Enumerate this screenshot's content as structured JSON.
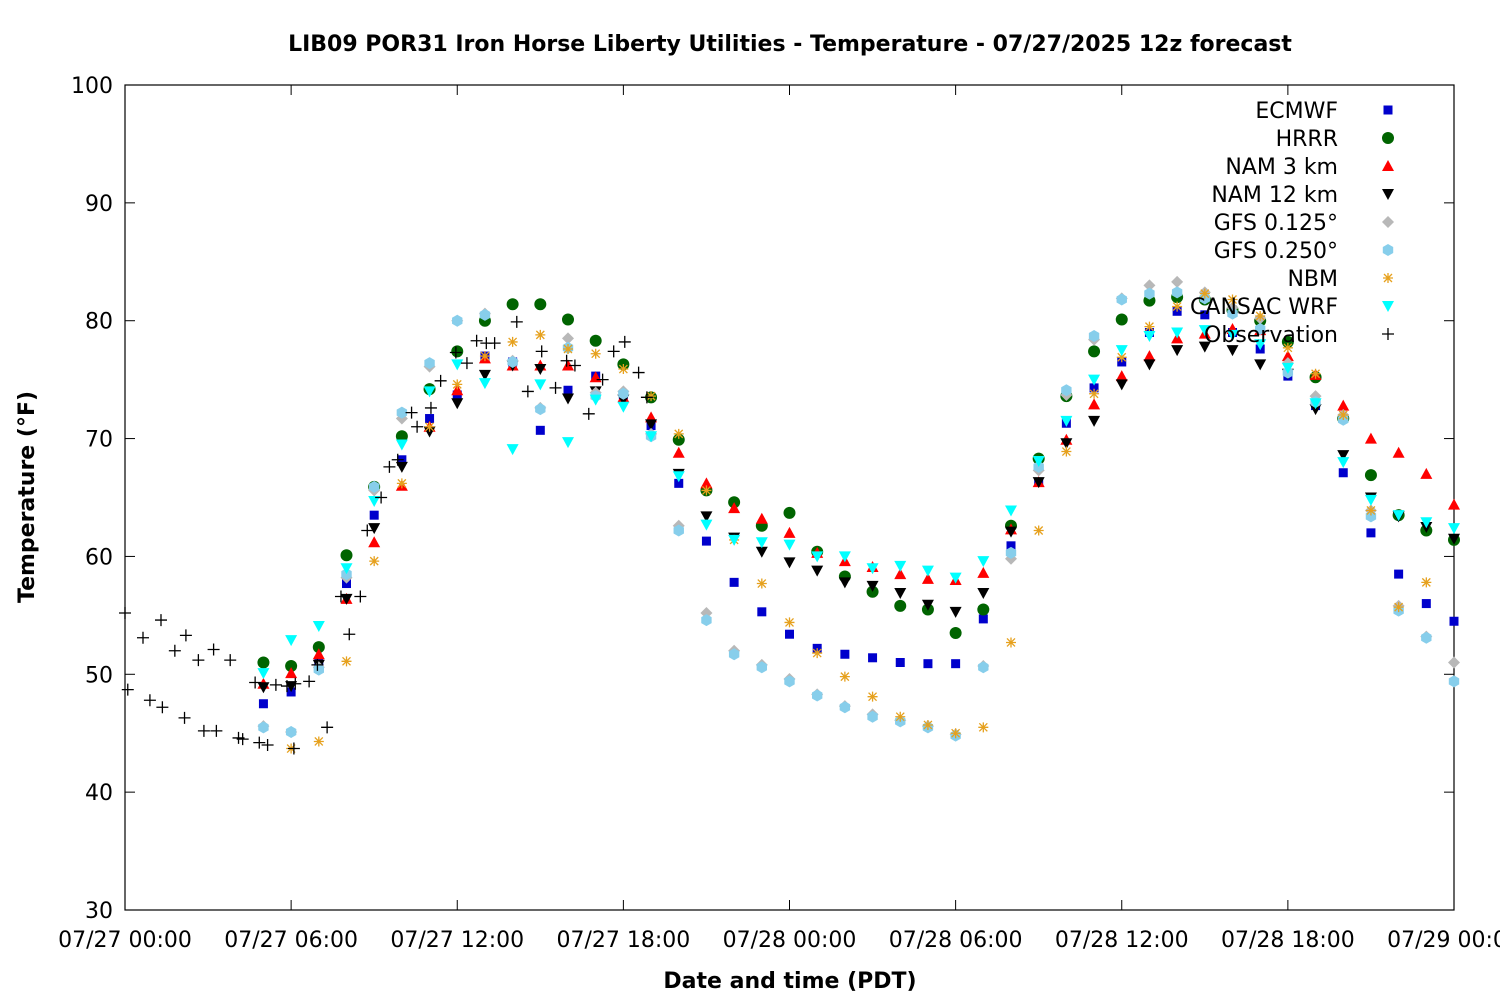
{
  "chart_data": {
    "type": "scatter",
    "title": "LIB09 POR31 Iron Horse Liberty Utilities - Temperature - 07/27/2025 12z forecast",
    "xlabel": "Date and time (PDT)",
    "ylabel": "Temperature (°F)",
    "x_unit": "hours since 07/27 00:00 PDT",
    "xlim": [
      0,
      48
    ],
    "ylim": [
      30,
      100
    ],
    "x_ticks": [
      {
        "value": 0,
        "label": "07/27 00:00"
      },
      {
        "value": 6,
        "label": "07/27 06:00"
      },
      {
        "value": 12,
        "label": "07/27 12:00"
      },
      {
        "value": 18,
        "label": "07/27 18:00"
      },
      {
        "value": 24,
        "label": "07/28 00:00"
      },
      {
        "value": 30,
        "label": "07/28 06:00"
      },
      {
        "value": 36,
        "label": "07/28 12:00"
      },
      {
        "value": 42,
        "label": "07/28 18:00"
      },
      {
        "value": 48,
        "label": "07/29 00:00"
      }
    ],
    "y_ticks": [
      30,
      40,
      50,
      60,
      70,
      80,
      90,
      100
    ],
    "grid": false,
    "legend_position": "top-right",
    "series": [
      {
        "name": "ECMWF",
        "color": "#0000cc",
        "marker": "square",
        "x": [
          5,
          6,
          7,
          8,
          9,
          10,
          11,
          12,
          13,
          14,
          15,
          16,
          17,
          18,
          19,
          20,
          21,
          22,
          23,
          24,
          25,
          26,
          27,
          28,
          29,
          30,
          31,
          32,
          33,
          34,
          35,
          36,
          37,
          38,
          39,
          40,
          41,
          42,
          43,
          44,
          45,
          46,
          47,
          48
        ],
        "y": [
          47.5,
          48.5,
          51.0,
          57.7,
          63.5,
          68.2,
          71.7,
          73.7,
          77.0,
          76.5,
          70.7,
          74.1,
          75.3,
          73.7,
          71.1,
          66.2,
          61.3,
          57.8,
          55.3,
          53.4,
          52.2,
          51.7,
          51.4,
          51.0,
          50.9,
          50.9,
          54.7,
          60.9,
          66.3,
          71.3,
          74.3,
          76.5,
          79.0,
          80.8,
          80.5,
          79.0,
          77.6,
          75.3,
          72.8,
          67.1,
          62.0,
          58.5,
          56.0,
          54.5
        ]
      },
      {
        "name": "HRRR",
        "color": "#006400",
        "marker": "circle",
        "x": [
          5,
          6,
          7,
          8,
          9,
          10,
          11,
          12,
          13,
          14,
          15,
          16,
          17,
          18,
          19,
          20,
          21,
          22,
          23,
          24,
          25,
          26,
          27,
          28,
          29,
          30,
          31,
          32,
          33,
          34,
          35,
          36,
          37,
          38,
          39,
          40,
          41,
          42,
          43,
          44,
          45,
          46,
          47,
          48
        ],
        "y": [
          51.0,
          50.7,
          52.3,
          60.1,
          65.9,
          70.2,
          74.2,
          77.4,
          80.0,
          81.4,
          81.4,
          80.1,
          78.3,
          76.3,
          73.5,
          69.9,
          65.6,
          64.6,
          62.6,
          63.7,
          60.4,
          58.3,
          57.0,
          55.8,
          55.5,
          53.5,
          55.5,
          62.6,
          68.3,
          73.6,
          77.4,
          80.1,
          81.7,
          82.0,
          81.8,
          80.9,
          80.0,
          78.2,
          75.2,
          71.7,
          66.9,
          63.5,
          62.2,
          61.4
        ]
      },
      {
        "name": "NAM 3 km",
        "color": "#ff0000",
        "marker": "triangle-up",
        "x": [
          5,
          6,
          7,
          8,
          9,
          10,
          11,
          12,
          13,
          14,
          15,
          16,
          17,
          18,
          19,
          20,
          21,
          22,
          23,
          24,
          25,
          26,
          27,
          28,
          29,
          30,
          31,
          32,
          33,
          34,
          35,
          36,
          37,
          38,
          39,
          40,
          41,
          42,
          43,
          44,
          45,
          46,
          47,
          48
        ],
        "y": [
          49.2,
          50.1,
          51.7,
          56.4,
          61.2,
          66.0,
          71.0,
          74.1,
          76.8,
          76.2,
          76.2,
          76.2,
          75.2,
          73.5,
          71.8,
          68.8,
          66.2,
          64.1,
          63.2,
          62.0,
          60.3,
          59.6,
          59.1,
          58.5,
          58.1,
          58.0,
          58.6,
          62.3,
          66.3,
          69.9,
          72.9,
          75.3,
          77.0,
          78.5,
          78.9,
          79.3,
          79.2,
          77.0,
          75.4,
          72.8,
          70.0,
          68.8,
          67.0,
          64.4
        ]
      },
      {
        "name": "NAM 12 km",
        "color": "#000000",
        "marker": "triangle-down",
        "x": [
          5,
          6,
          7,
          8,
          9,
          10,
          11,
          12,
          13,
          14,
          15,
          16,
          17,
          18,
          19,
          20,
          21,
          22,
          23,
          24,
          25,
          26,
          27,
          28,
          29,
          30,
          31,
          32,
          33,
          34,
          35,
          36,
          37,
          38,
          39,
          40,
          41,
          42,
          43,
          44,
          45,
          46,
          47,
          48
        ],
        "y": [
          48.9,
          49.0,
          50.8,
          56.4,
          62.4,
          67.6,
          70.6,
          73.0,
          75.4,
          76.2,
          75.9,
          73.4,
          74.0,
          73.3,
          71.2,
          67.0,
          63.4,
          61.6,
          60.4,
          59.5,
          58.8,
          57.8,
          57.5,
          56.9,
          55.9,
          55.3,
          56.9,
          62.1,
          66.3,
          69.6,
          71.5,
          74.6,
          76.3,
          77.5,
          77.8,
          77.5,
          76.3,
          75.5,
          72.5,
          68.6,
          65.0,
          63.4,
          62.5,
          61.5
        ]
      },
      {
        "name": "GFS 0.125°",
        "color": "#b8b8b8",
        "marker": "diamond",
        "x": [
          5,
          6,
          7,
          8,
          9,
          10,
          11,
          12,
          13,
          14,
          15,
          16,
          17,
          18,
          19,
          20,
          21,
          22,
          23,
          24,
          25,
          26,
          27,
          28,
          29,
          30,
          31,
          32,
          33,
          34,
          35,
          36,
          37,
          38,
          39,
          40,
          41,
          42,
          43,
          44,
          45,
          46,
          47,
          48
        ],
        "y": [
          45.6,
          45.1,
          50.6,
          58.2,
          65.6,
          71.7,
          76.1,
          80.0,
          80.6,
          76.6,
          72.6,
          78.5,
          73.9,
          74.0,
          70.4,
          62.6,
          55.2,
          52.0,
          50.8,
          49.6,
          48.3,
          47.3,
          46.6,
          46.1,
          45.6,
          44.9,
          50.7,
          59.8,
          67.3,
          73.7,
          78.4,
          81.9,
          83.0,
          83.3,
          82.4,
          81.1,
          80.2,
          76.4,
          73.6,
          72.0,
          63.9,
          55.8,
          53.2,
          51.0
        ]
      },
      {
        "name": "GFS 0.250°",
        "color": "#87ceeb",
        "marker": "hexagon",
        "x": [
          5,
          6,
          7,
          8,
          9,
          10,
          11,
          12,
          13,
          14,
          15,
          16,
          17,
          18,
          19,
          20,
          21,
          22,
          23,
          24,
          25,
          26,
          27,
          28,
          29,
          30,
          31,
          32,
          33,
          34,
          35,
          36,
          37,
          38,
          39,
          40,
          41,
          42,
          43,
          44,
          45,
          46,
          47,
          48
        ],
        "y": [
          45.5,
          45.1,
          50.4,
          58.5,
          65.9,
          72.2,
          76.4,
          80.0,
          80.5,
          76.5,
          72.5,
          77.7,
          73.6,
          73.8,
          70.2,
          62.2,
          54.6,
          51.7,
          50.6,
          49.4,
          48.2,
          47.2,
          46.4,
          46.0,
          45.5,
          44.8,
          50.6,
          60.3,
          67.6,
          74.1,
          78.7,
          81.8,
          82.3,
          82.4,
          81.9,
          80.6,
          79.3,
          75.6,
          73.1,
          71.6,
          63.4,
          55.4,
          53.1,
          49.4
        ]
      },
      {
        "name": "NBM",
        "color": "#e6a11e",
        "marker": "asterisk",
        "x": [
          6,
          7,
          8,
          9,
          10,
          11,
          12,
          13,
          14,
          15,
          16,
          17,
          18,
          19,
          20,
          21,
          22,
          23,
          24,
          25,
          26,
          27,
          28,
          29,
          30,
          31,
          32,
          33,
          34,
          35,
          36,
          37,
          38,
          39,
          40,
          41,
          42,
          43,
          44,
          45,
          46,
          47
        ],
        "y": [
          43.7,
          44.3,
          51.1,
          59.6,
          66.2,
          71.0,
          74.6,
          77.0,
          78.2,
          78.8,
          77.6,
          77.2,
          75.9,
          73.6,
          70.4,
          65.6,
          61.4,
          57.7,
          54.4,
          51.8,
          49.8,
          48.1,
          46.4,
          45.7,
          45.0,
          45.5,
          52.7,
          62.2,
          68.9,
          73.8,
          76.9,
          79.5,
          81.2,
          82.3,
          81.8,
          80.4,
          77.7,
          75.5,
          72.0,
          63.9,
          55.7,
          57.8
        ]
      },
      {
        "name": "CANSAC WRF",
        "color": "#00ffff",
        "marker": "triangle-down",
        "x": [
          5,
          6,
          7,
          8,
          9,
          10,
          11,
          12,
          13,
          14,
          15,
          16,
          17,
          18,
          19,
          20,
          21,
          22,
          23,
          24,
          25,
          26,
          27,
          28,
          29,
          30,
          31,
          32,
          33,
          34,
          35,
          36,
          37,
          38,
          39,
          40,
          41,
          42,
          43,
          44,
          45,
          46,
          47,
          48
        ],
        "y": [
          50.1,
          52.9,
          54.1,
          59.0,
          64.7,
          69.5,
          74.0,
          76.3,
          74.7,
          69.1,
          74.6,
          69.7,
          73.3,
          72.7,
          70.2,
          66.8,
          62.7,
          61.4,
          61.2,
          61.0,
          60.0,
          60.0,
          59.0,
          59.2,
          58.8,
          58.2,
          59.6,
          63.9,
          68.1,
          71.5,
          75.0,
          77.5,
          78.7,
          79.0,
          79.2,
          78.8,
          78.0,
          76.0,
          73.0,
          68.0,
          64.8,
          63.5,
          62.9,
          62.4
        ]
      },
      {
        "name": "Observation",
        "color": "#000000",
        "marker": "plus",
        "x": [
          0,
          0.1,
          0.65,
          0.9,
          1.3,
          1.35,
          1.8,
          2.15,
          2.2,
          2.65,
          2.85,
          3.2,
          3.3,
          3.8,
          4.1,
          4.25,
          4.7,
          4.85,
          5.15,
          5.45,
          5.85,
          6.1,
          6.15,
          6.65,
          6.95,
          7.3,
          7.8,
          8.1,
          8.5,
          8.75,
          9.25,
          9.55,
          9.85,
          10.35,
          10.55,
          11.05,
          11.4,
          11.95,
          12.35,
          12.7,
          13.05,
          13.35,
          14.15,
          14.55,
          15.05,
          15.55,
          15.95,
          16.25,
          16.75,
          17.25,
          17.65,
          18.05,
          18.55,
          18.85
        ],
        "y": [
          55.2,
          48.7,
          53.1,
          47.8,
          54.6,
          47.2,
          52.0,
          46.3,
          53.3,
          51.2,
          45.2,
          52.1,
          45.2,
          51.2,
          44.6,
          44.5,
          49.3,
          44.2,
          44.0,
          49.1,
          49.0,
          43.7,
          49.2,
          49.4,
          50.8,
          45.5,
          56.6,
          53.4,
          56.6,
          62.2,
          65.0,
          67.6,
          68.2,
          72.2,
          71.0,
          72.6,
          74.9,
          77.3,
          76.4,
          78.3,
          78.1,
          78.1,
          79.9,
          74.0,
          77.4,
          74.3,
          76.6,
          76.2,
          72.1,
          75.0,
          77.4,
          78.2,
          75.6,
          73.5
        ]
      }
    ]
  }
}
